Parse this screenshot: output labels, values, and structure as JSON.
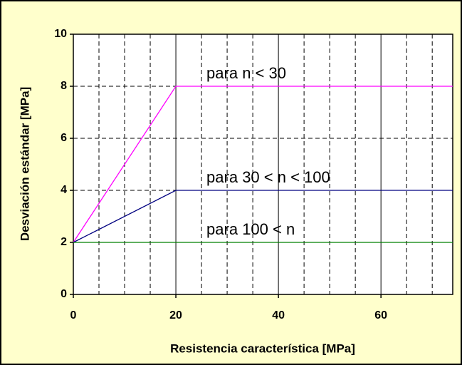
{
  "chart_data": {
    "type": "line",
    "xlabel": "Resistencia característica [MPa]",
    "ylabel": "Desviación estándar [MPa]",
    "x": [
      0,
      20,
      74
    ],
    "series": [
      {
        "name": "para n < 30",
        "color": "#ff00ff",
        "values": [
          2,
          8,
          8
        ]
      },
      {
        "name": "para 30 < n < 100",
        "color": "#000080",
        "values": [
          2,
          4,
          4
        ]
      },
      {
        "name": "para 100 < n",
        "color": "#008000",
        "values": [
          2,
          2,
          2
        ]
      }
    ],
    "xlim": [
      0,
      74
    ],
    "xticks": [
      0,
      20,
      40,
      60
    ],
    "xminorticks": [
      5,
      10,
      15,
      25,
      30,
      35,
      45,
      50,
      55,
      65,
      70
    ],
    "ylim": [
      0,
      10
    ],
    "yticks": [
      0,
      2,
      4,
      6,
      8,
      10
    ],
    "grid": true
  }
}
